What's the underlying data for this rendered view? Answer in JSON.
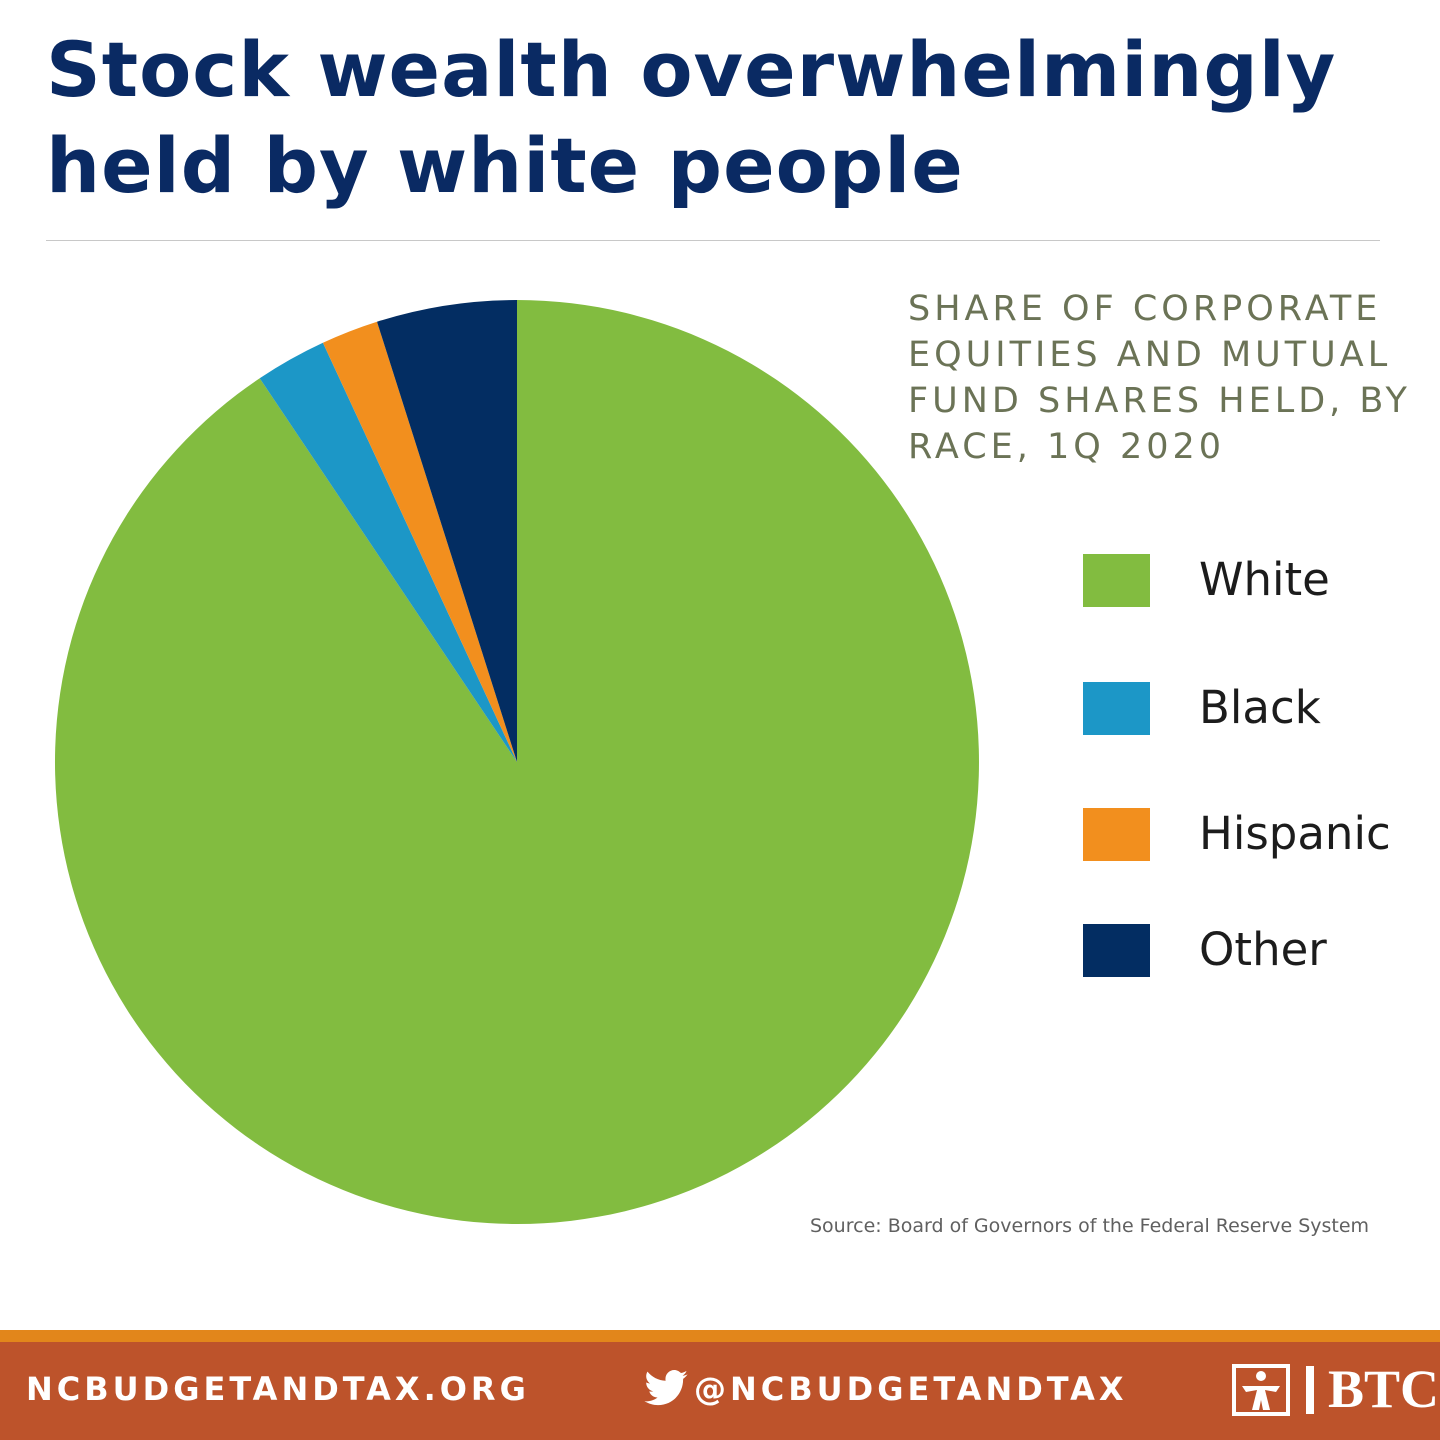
{
  "colors": {
    "headline": "#0a2a63",
    "white_slice": "#82bc40",
    "black_slice": "#1c97c7",
    "hispanic_slice": "#f28f1e",
    "other_slice": "#032d62",
    "footer_band": "#bd532b",
    "footer_stripe": "#e2861b"
  },
  "chart_data": {
    "type": "pie",
    "title": "Stock wealth overwhelmingly held by white people",
    "subtitle": "SHARE OF CORPORATE EQUITIES AND MUTUAL FUND SHARES HELD, BY RACE, 1Q 2020",
    "unit": "percent",
    "start_at": "top",
    "direction": "clockwise",
    "legend_position": "right",
    "slices": [
      {
        "label": "White",
        "value": 90.6,
        "color": "#82bc40"
      },
      {
        "label": "Black",
        "value": 2.5,
        "color": "#1c97c7"
      },
      {
        "label": "Hispanic",
        "value": 2.0,
        "color": "#f28f1e"
      },
      {
        "label": "Other",
        "value": 4.9,
        "color": "#032d62"
      }
    ],
    "source": "Source: Board of Governors of the Federal Reserve System"
  },
  "footer": {
    "website": "NCBUDGETANDTAX.ORG",
    "twitter_icon": "twitter-bird-icon",
    "twitter_handle": "@NCBUDGETANDTAX",
    "logo_icon": "btc-logo-icon",
    "logo_text": "BTC"
  }
}
